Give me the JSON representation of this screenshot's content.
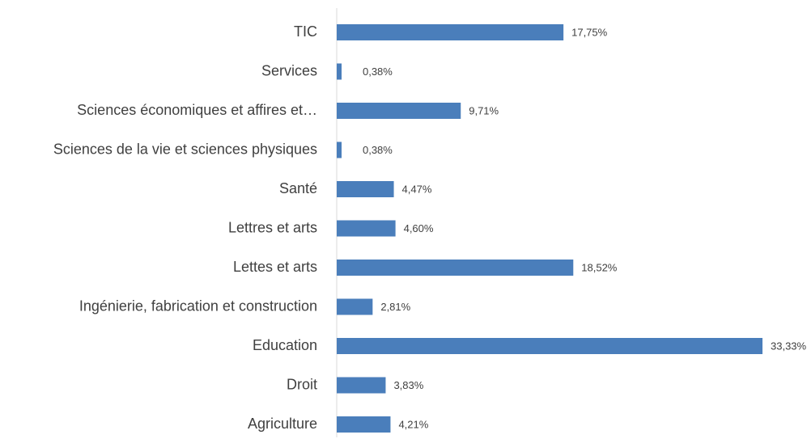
{
  "chart_data": {
    "type": "bar",
    "orientation": "horizontal",
    "categories": [
      "TIC",
      "Services",
      "Sciences économiques et affires et…",
      "Sciences de la vie et sciences physiques",
      "Santé",
      "Lettres et arts",
      "Lettes et arts",
      "Ingénierie, fabrication et construction",
      "Education",
      "Droit",
      "Agriculture"
    ],
    "values": [
      17.75,
      0.38,
      9.71,
      0.38,
      4.47,
      4.6,
      18.52,
      2.81,
      33.33,
      3.83,
      4.21
    ],
    "value_labels": [
      "17,75%",
      "0,38%",
      "9,71%",
      "0,38%",
      "4,47%",
      "4,60%",
      "18,52%",
      "2,81%",
      "33,33%",
      "3,83%",
      "4,21%"
    ],
    "color": "#4a7ebb"
  }
}
